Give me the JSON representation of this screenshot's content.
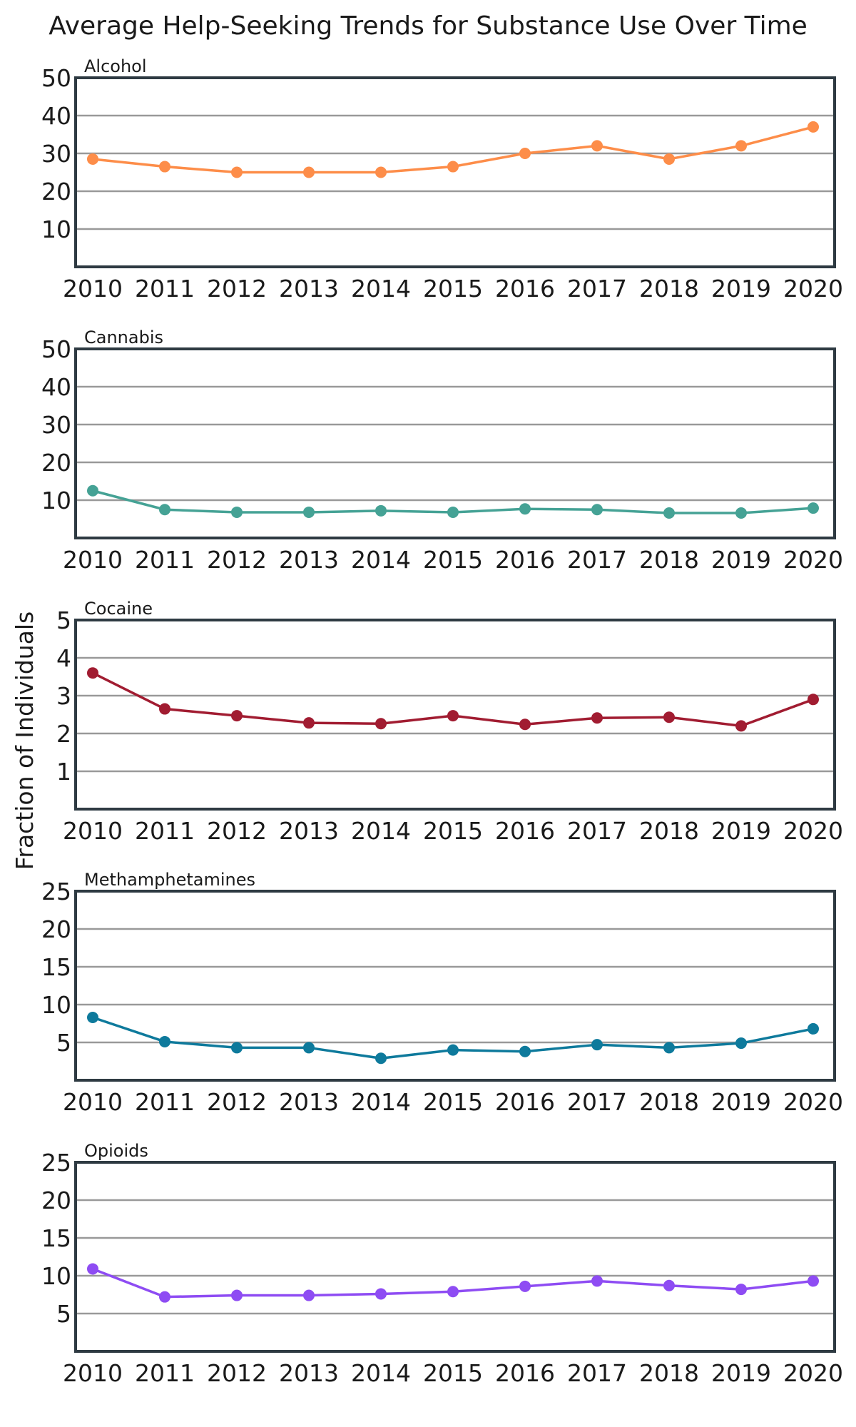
{
  "title": "Average Help-Seeking Trends for Substance Use Over Time",
  "ylabel": "Fraction of Individuals",
  "chart_data": [
    {
      "type": "line",
      "title": "Alcohol",
      "color": "#fd8d49",
      "x": [
        2010,
        2011,
        2012,
        2013,
        2014,
        2015,
        2016,
        2017,
        2018,
        2019,
        2020
      ],
      "values": [
        28.5,
        26.5,
        25.0,
        25.0,
        25.0,
        26.5,
        30.0,
        32.0,
        28.5,
        32.0,
        37.0
      ],
      "ylim": [
        0,
        50
      ],
      "yticks": [
        10,
        20,
        30,
        40,
        50
      ],
      "grid": true
    },
    {
      "type": "line",
      "title": "Cannabis",
      "color": "#45a295",
      "x": [
        2010,
        2011,
        2012,
        2013,
        2014,
        2015,
        2016,
        2017,
        2018,
        2019,
        2020
      ],
      "values": [
        12.5,
        7.5,
        6.8,
        6.8,
        7.2,
        6.8,
        7.7,
        7.5,
        6.6,
        6.6,
        7.9
      ],
      "ylim": [
        0,
        50
      ],
      "yticks": [
        10,
        20,
        30,
        40,
        50
      ],
      "grid": true
    },
    {
      "type": "line",
      "title": "Cocaine",
      "color": "#a11c31",
      "x": [
        2010,
        2011,
        2012,
        2013,
        2014,
        2015,
        2016,
        2017,
        2018,
        2019,
        2020
      ],
      "values": [
        3.6,
        2.65,
        2.47,
        2.28,
        2.26,
        2.47,
        2.24,
        2.41,
        2.43,
        2.2,
        2.9
      ],
      "ylim": [
        0,
        5
      ],
      "yticks": [
        1,
        2,
        3,
        4,
        5
      ],
      "grid": true
    },
    {
      "type": "line",
      "title": "Methamphetamines",
      "color": "#0e7a9c",
      "x": [
        2010,
        2011,
        2012,
        2013,
        2014,
        2015,
        2016,
        2017,
        2018,
        2019,
        2020
      ],
      "values": [
        8.3,
        5.1,
        4.3,
        4.3,
        2.9,
        4.0,
        3.8,
        4.7,
        4.3,
        4.9,
        6.8
      ],
      "ylim": [
        0,
        25
      ],
      "yticks": [
        5,
        10,
        15,
        20,
        25
      ],
      "grid": true
    },
    {
      "type": "line",
      "title": "Opioids",
      "color": "#8e4cf3",
      "x": [
        2010,
        2011,
        2012,
        2013,
        2014,
        2015,
        2016,
        2017,
        2018,
        2019,
        2020
      ],
      "values": [
        10.9,
        7.2,
        7.4,
        7.4,
        7.6,
        7.9,
        8.6,
        9.3,
        8.7,
        8.2,
        9.3
      ],
      "ylim": [
        0,
        25
      ],
      "yticks": [
        5,
        10,
        15,
        20,
        25
      ],
      "grid": true
    }
  ]
}
